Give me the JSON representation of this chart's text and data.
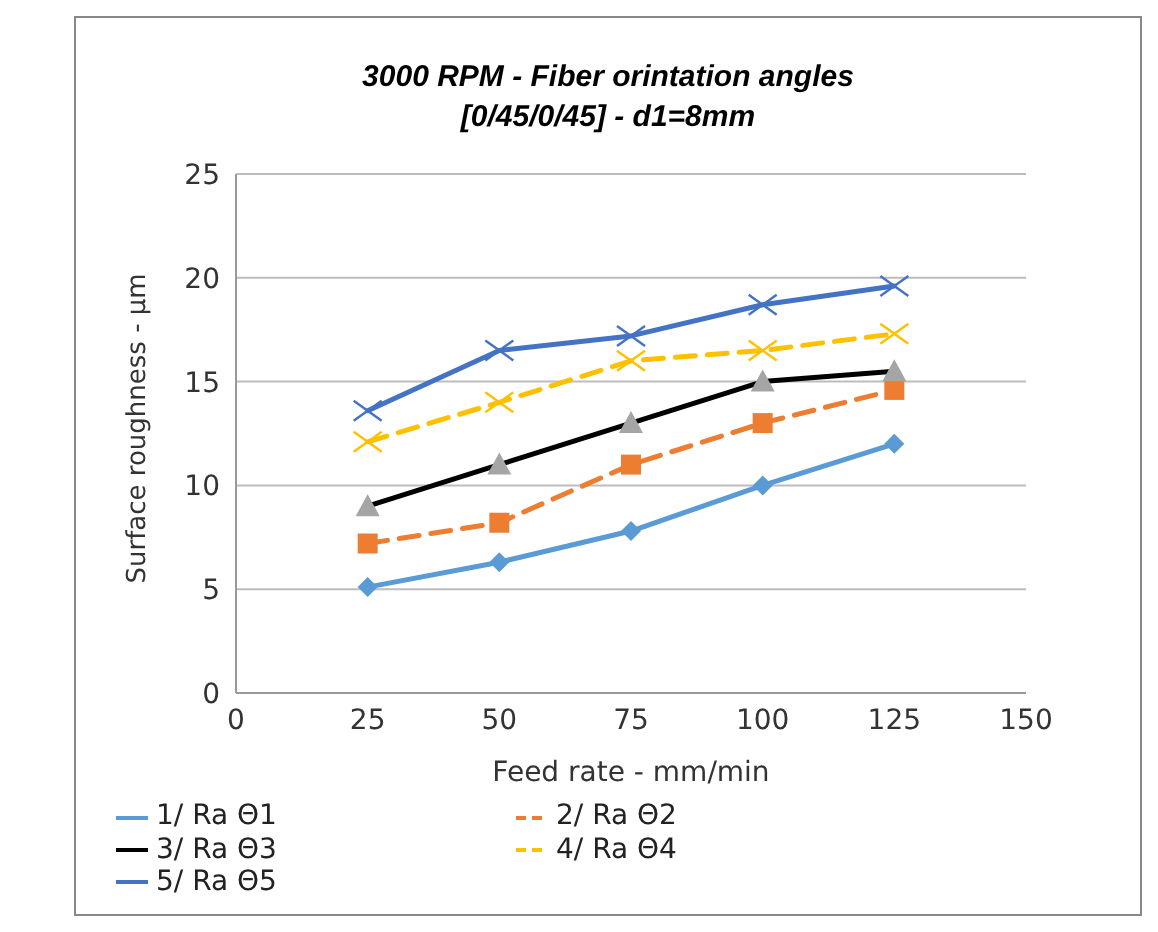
{
  "chart_data": {
    "type": "line",
    "title": "3000 RPM - Fiber orintation angles\n[0/45/0/45] - d1=8mm",
    "xlabel": "Feed rate - mm/min",
    "ylabel": "Surface roughness - µm",
    "x": [
      25,
      50,
      75,
      100,
      125
    ],
    "series": [
      {
        "name": "1/ Ra Θ1",
        "color": "#5b9bd5",
        "marker": "diamond",
        "line_style": "solid",
        "values": [
          5.1,
          6.3,
          7.8,
          10.0,
          12.0
        ]
      },
      {
        "name": "2/ Ra Θ2",
        "color": "#ed7d31",
        "marker": "square",
        "line_style": "dashed",
        "values": [
          7.2,
          8.2,
          11.0,
          13.0,
          14.6
        ]
      },
      {
        "name": "3/ Ra Θ3",
        "color": "#000000",
        "marker": "triangle",
        "line_style": "solid",
        "values": [
          9.0,
          11.0,
          13.0,
          15.0,
          15.5
        ]
      },
      {
        "name": "4/ Ra Θ4",
        "color": "#ffc000",
        "marker": "cross",
        "line_style": "dashed",
        "values": [
          12.1,
          14.0,
          16.0,
          16.5,
          17.3
        ]
      },
      {
        "name": "5/ Ra Θ5",
        "color": "#4472c4",
        "marker": "cross",
        "line_style": "solid",
        "values": [
          13.6,
          16.5,
          17.2,
          18.7,
          19.6
        ]
      }
    ],
    "xlim": [
      0,
      150
    ],
    "xticks": [
      0,
      25,
      50,
      75,
      100,
      125,
      150
    ],
    "ylim": [
      0,
      25
    ],
    "yticks": [
      0,
      5,
      10,
      15,
      20,
      25
    ],
    "grid": "y",
    "legend": "bottom"
  }
}
